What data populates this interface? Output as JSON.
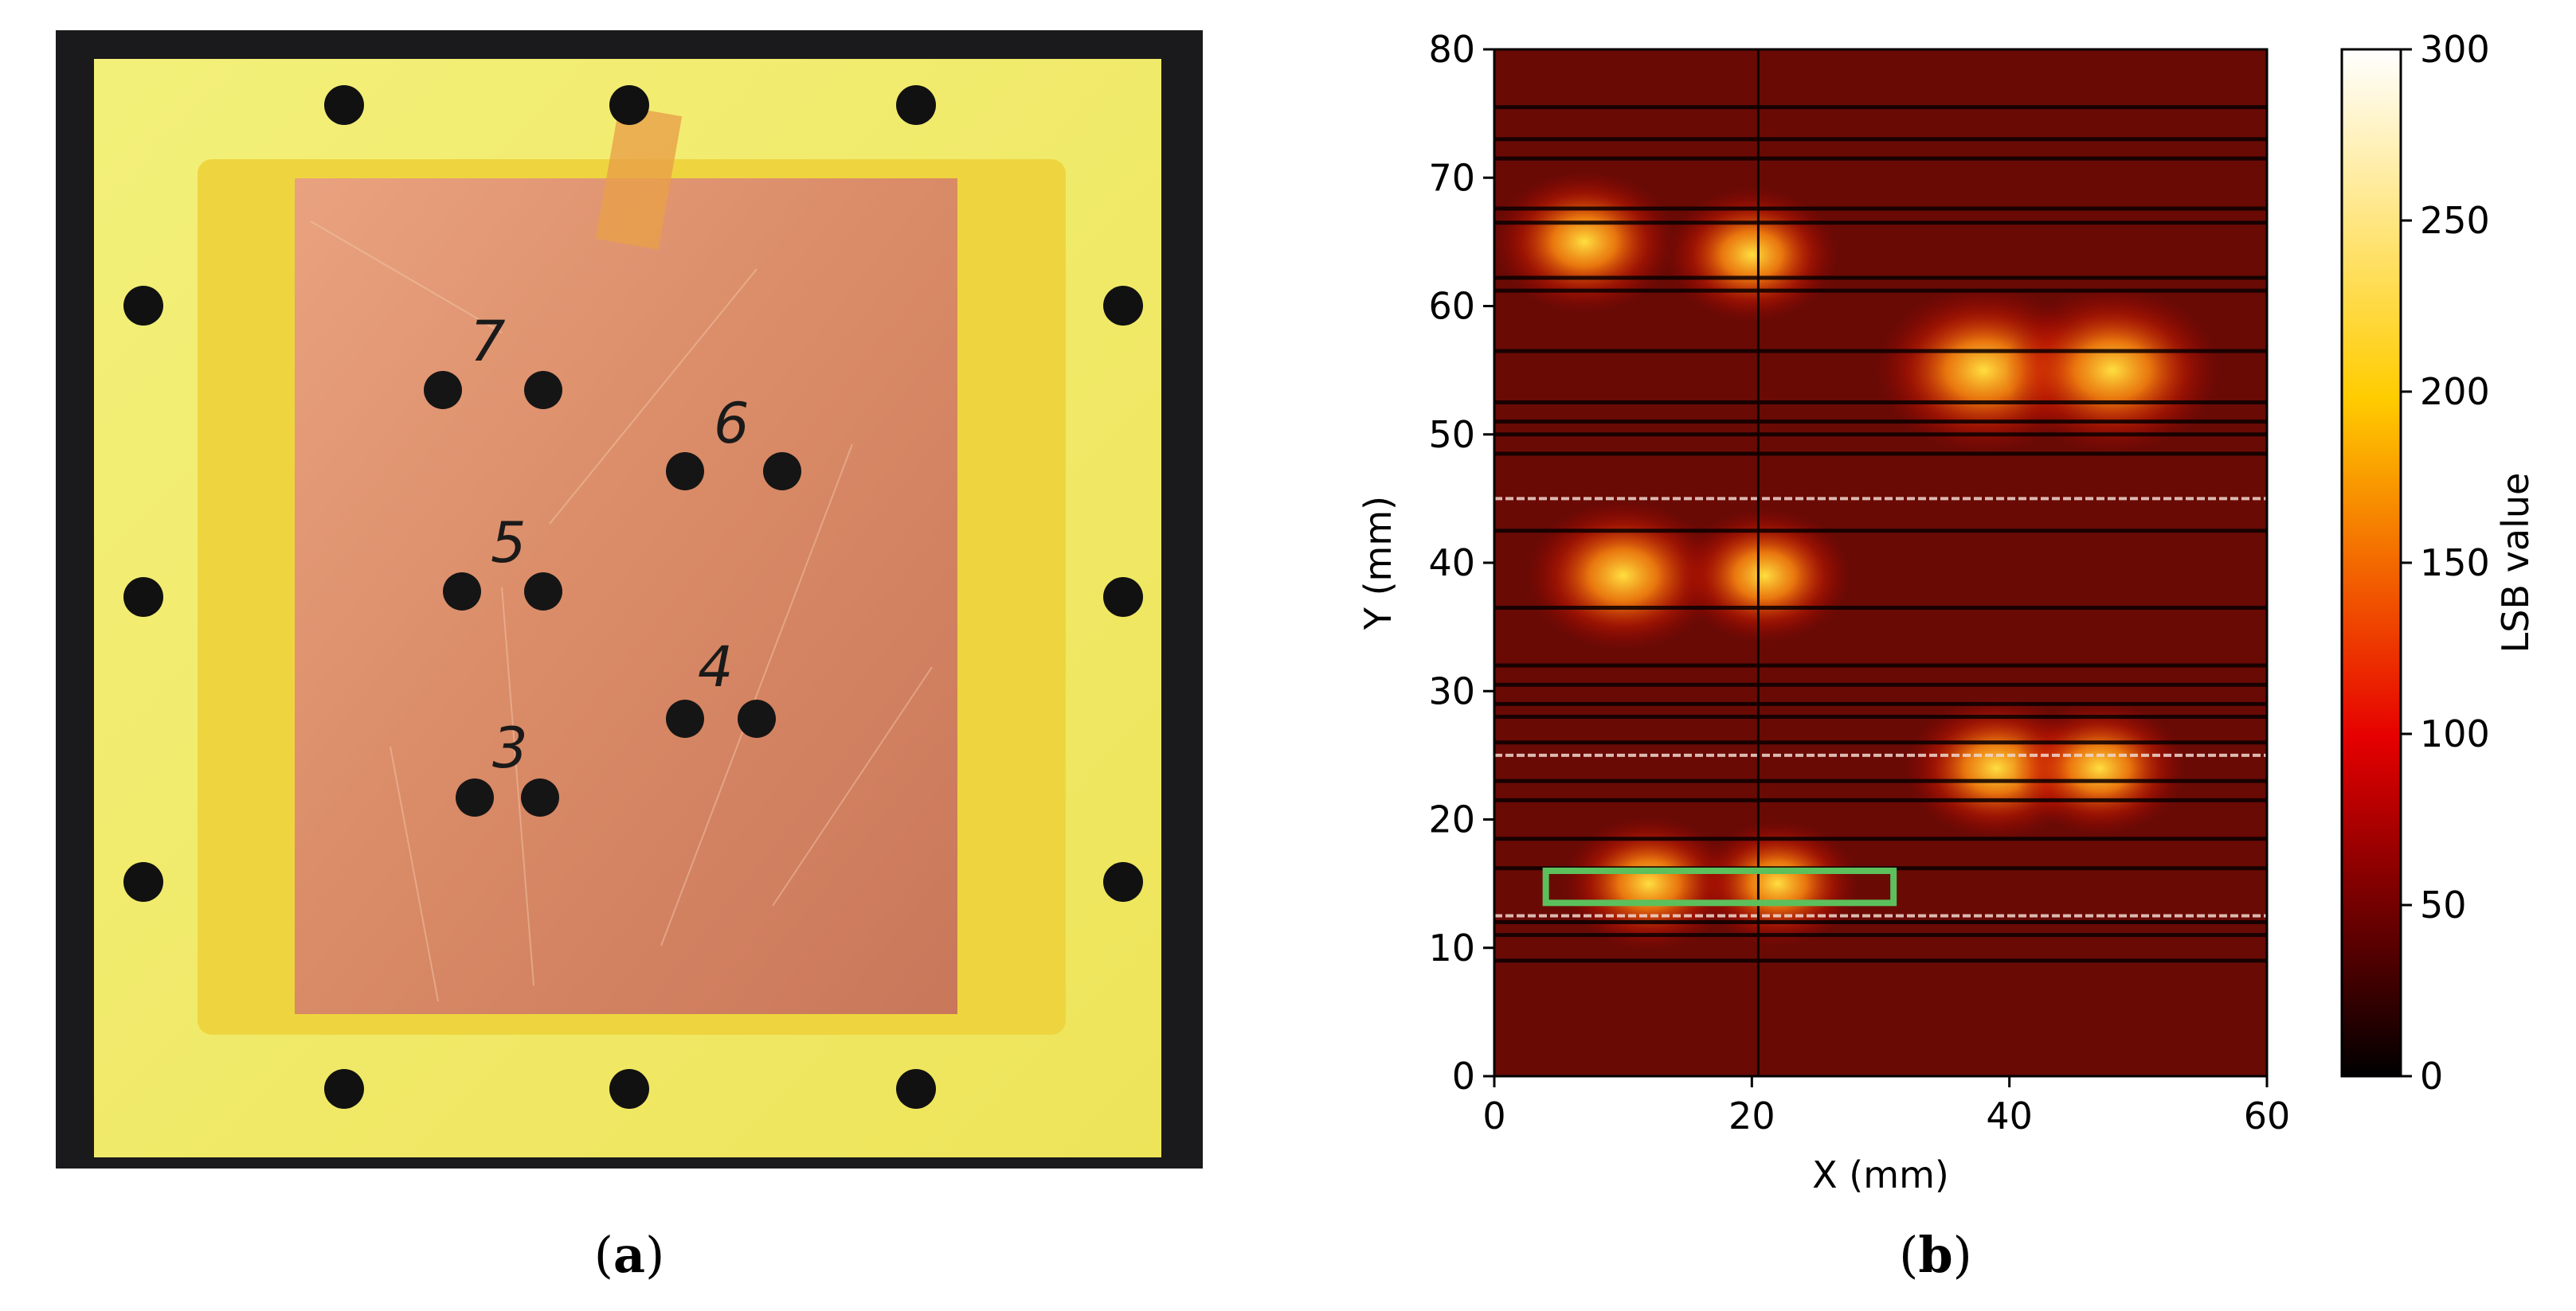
{
  "panel_a": {
    "caption_open": "(",
    "caption_letter": "a",
    "caption_close": ")",
    "hole_labels": [
      "7",
      "6",
      "5",
      "4",
      "3"
    ]
  },
  "panel_b": {
    "caption_open": "(",
    "caption_letter": "b",
    "caption_close": ")"
  },
  "chart_data": {
    "type": "heatmap",
    "title": "",
    "xlabel": "X (mm)",
    "ylabel": "Y (mm)",
    "xlim": [
      0,
      60
    ],
    "ylim": [
      0,
      80
    ],
    "xticks": [
      "0",
      "20",
      "40",
      "60"
    ],
    "yticks": [
      "0",
      "10",
      "20",
      "30",
      "40",
      "50",
      "60",
      "70",
      "80"
    ],
    "colorbar": {
      "label": "LSB value",
      "range": [
        0,
        300
      ],
      "ticks": [
        "0",
        "50",
        "100",
        "150",
        "200",
        "250",
        "300"
      ],
      "colormap": "hot"
    },
    "hotspots": [
      {
        "x": 7,
        "y": 65,
        "value": 190
      },
      {
        "x": 20,
        "y": 64,
        "value": 180
      },
      {
        "x": 38,
        "y": 55,
        "value": 220
      },
      {
        "x": 48,
        "y": 55,
        "value": 220
      },
      {
        "x": 10,
        "y": 39,
        "value": 200
      },
      {
        "x": 21,
        "y": 39,
        "value": 180
      },
      {
        "x": 39,
        "y": 24,
        "value": 190
      },
      {
        "x": 47,
        "y": 24,
        "value": 180
      },
      {
        "x": 12,
        "y": 15,
        "value": 180
      },
      {
        "x": 22,
        "y": 15,
        "value": 170
      }
    ],
    "roi_box": {
      "x_min": 4,
      "x_max": 31,
      "y_min": 13.5,
      "y_max": 16,
      "color": "#5cc05c"
    },
    "background_value": 70
  }
}
